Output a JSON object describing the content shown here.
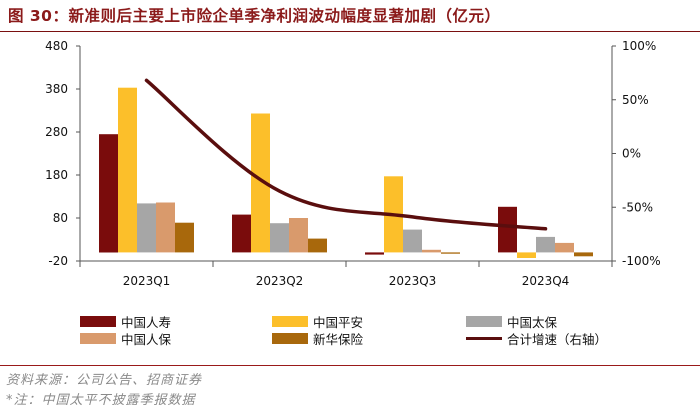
{
  "title": "图 30：新准则后主要上市险企单季净利润波动幅度显著加剧（亿元）",
  "legend": {
    "items": [
      {
        "label": "中国人寿",
        "color": "#7a0c0c"
      },
      {
        "label": "中国平安",
        "color": "#fcbf2a"
      },
      {
        "label": "中国太保",
        "color": "#a6a6a6"
      },
      {
        "label": "中国人保",
        "color": "#d99a6c"
      },
      {
        "label": "新华保险",
        "color": "#a8680c"
      },
      {
        "label": "合计增速（右轴）",
        "color": "#5a0e0e"
      }
    ]
  },
  "footer": {
    "source": "资料来源：公司公告、招商证券",
    "note": "*注：中国太平不披露季报数据"
  },
  "chart_data": {
    "type": "bar",
    "categories": [
      "2023Q1",
      "2023Q2",
      "2023Q3",
      "2023Q4"
    ],
    "series": [
      {
        "name": "中国人寿",
        "values": [
          275,
          88,
          -5,
          106
        ],
        "color": "#7a0c0c"
      },
      {
        "name": "中国平安",
        "values": [
          383,
          323,
          177,
          -13
        ],
        "color": "#fcbf2a"
      },
      {
        "name": "中国太保",
        "values": [
          114,
          68,
          53,
          36
        ],
        "color": "#a6a6a6"
      },
      {
        "name": "中国人保",
        "values": [
          116,
          80,
          6,
          22
        ],
        "color": "#d99a6c"
      },
      {
        "name": "新华保险",
        "values": [
          69,
          32,
          -3,
          -9
        ],
        "color": "#a8680c"
      }
    ],
    "line_series": {
      "name": "合计增速（右轴）",
      "values": [
        68,
        -35,
        -59,
        -70
      ],
      "unit": "%",
      "axis": "right",
      "color": "#5a0e0e"
    },
    "y_left": {
      "ticks": [
        -20,
        80,
        180,
        280,
        380,
        480
      ],
      "range": [
        -20,
        480
      ]
    },
    "y_right": {
      "ticks": [
        -100,
        -50,
        0,
        50,
        100
      ],
      "tick_labels": [
        "-100%",
        "-50%",
        "0%",
        "50%",
        "100%"
      ],
      "range": [
        -100,
        100
      ]
    },
    "grid": false,
    "legend_position": "bottom"
  }
}
